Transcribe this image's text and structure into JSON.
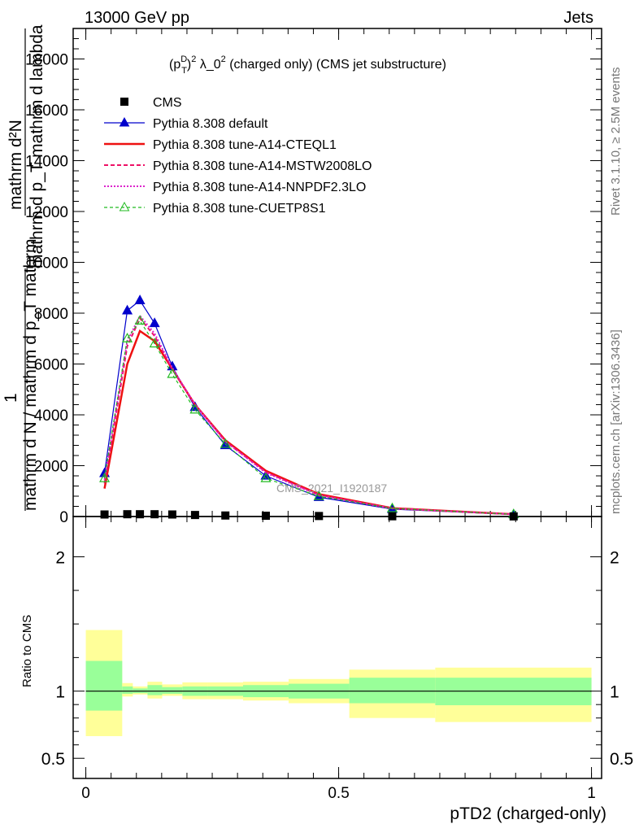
{
  "header": {
    "left": "13000 GeV pp",
    "right": "Jets"
  },
  "side_labels": {
    "rivet": "Rivet 3.1.10, ≥ 2.5M events",
    "mcplots": "mcplots.cern.ch [arXiv:1306.3436]"
  },
  "chart_data": {
    "type": "line",
    "title_parts": {
      "p": "(p",
      "sup_d": "D",
      "sub_t": "T",
      "rest": ")",
      "sup_2": "2",
      "label": " λ_0",
      "sup_2b": "2",
      "tail": " (charged only) (CMS jet substructure)"
    },
    "ylabel_top": {
      "numerator": "mathrm d²N",
      "denominator": "mathrm d p_T mathrm d lambda",
      "one": "1",
      "frac": "mathrm d N / mathrm d p_T mathrm"
    },
    "analysis_tag": "CMS_2021_I1920187",
    "xlabel": "pTD2 (charged-only)",
    "ratio_ylabel": "Ratio to CMS",
    "main_yticks": [
      {
        "v": 2000,
        "label": "2000"
      },
      {
        "v": 4000,
        "label": "4000"
      },
      {
        "v": 6000,
        "label": "6000"
      },
      {
        "v": 8000,
        "label": "8000"
      },
      {
        "v": 10000,
        "label": "10000"
      },
      {
        "v": 12000,
        "label": "12000"
      },
      {
        "v": 14000,
        "label": "14000"
      },
      {
        "v": 16000,
        "label": "16000"
      },
      {
        "v": 18000,
        "label": "18000"
      },
      {
        "v": 0,
        "label": "0"
      }
    ],
    "main_ylim": [
      0,
      19200
    ],
    "xlim": [
      -0.025,
      1.02
    ],
    "xticks": [
      {
        "v": 0,
        "label": "0"
      },
      {
        "v": 0.5,
        "label": "0.5"
      },
      {
        "v": 1,
        "label": "1"
      }
    ],
    "ratio_ylim": [
      0.35,
      2.3
    ],
    "ratio_yticks": [
      {
        "v": 0.5,
        "label": "0.5"
      },
      {
        "v": 1,
        "label": "1"
      },
      {
        "v": 2,
        "label": "2"
      }
    ],
    "x": [
      0.037,
      0.082,
      0.107,
      0.136,
      0.171,
      0.216,
      0.276,
      0.356,
      0.461,
      0.606,
      0.846
    ],
    "bins": [
      0.0,
      0.072,
      0.093,
      0.122,
      0.151,
      0.191,
      0.241,
      0.311,
      0.401,
      0.521,
      0.691,
      1.0
    ],
    "cms_values": [
      80,
      90,
      90,
      90,
      80,
      60,
      40,
      30,
      20,
      10,
      5
    ],
    "series": [
      {
        "name": "CMS",
        "color": "#000000",
        "marker": "square",
        "dash": "",
        "values": [
          80,
          90,
          90,
          90,
          80,
          60,
          40,
          30,
          20,
          10,
          5
        ]
      },
      {
        "name": "Pythia 8.308 default",
        "color": "#0000cc",
        "marker": "triangle",
        "dash": "",
        "values": [
          1700,
          8100,
          8500,
          7600,
          5900,
          4300,
          2800,
          1600,
          760,
          290,
          80
        ]
      },
      {
        "name": "Pythia 8.308 tune-A14-CTEQL1",
        "color": "#ee1111",
        "marker": "",
        "dash": "",
        "width": 2.5,
        "values": [
          1100,
          6000,
          7300,
          6900,
          5800,
          4400,
          3000,
          1800,
          880,
          330,
          90
        ]
      },
      {
        "name": "Pythia 8.308 tune-A14-MSTW2008LO",
        "color": "#ee1166",
        "marker": "",
        "dash": "5,3",
        "width": 2,
        "values": [
          1300,
          6700,
          7800,
          7100,
          5800,
          4400,
          2950,
          1750,
          850,
          320,
          85
        ]
      },
      {
        "name": "Pythia 8.308 tune-A14-NNPDF2.3LO",
        "color": "#dd22cc",
        "marker": "",
        "dash": "2,2",
        "width": 2,
        "values": [
          1450,
          6900,
          7900,
          7200,
          5850,
          4400,
          2950,
          1720,
          830,
          315,
          85
        ]
      },
      {
        "name": "Pythia 8.308 tune-CUETP8S1",
        "color": "#22bb22",
        "marker": "open-triangle",
        "dash": "4,3",
        "width": 1.2,
        "values": [
          1500,
          7000,
          7700,
          6800,
          5600,
          4200,
          2850,
          1500,
          800,
          320,
          85
        ]
      }
    ],
    "ratio_bands": [
      {
        "x0": 0.0,
        "x1": 0.072,
        "g": [
          0.855,
          1.225
        ],
        "y": [
          0.665,
          1.455
        ]
      },
      {
        "x0": 0.072,
        "x1": 0.093,
        "g": [
          0.98,
          1.035
        ],
        "y": [
          0.96,
          1.06
        ]
      },
      {
        "x0": 0.093,
        "x1": 0.122,
        "g": [
          0.985,
          1.02
        ],
        "y": [
          0.975,
          1.035
        ]
      },
      {
        "x0": 0.122,
        "x1": 0.151,
        "g": [
          0.97,
          1.045
        ],
        "y": [
          0.945,
          1.07
        ]
      },
      {
        "x0": 0.151,
        "x1": 0.191,
        "g": [
          0.98,
          1.03
        ],
        "y": [
          0.965,
          1.05
        ]
      },
      {
        "x0": 0.191,
        "x1": 0.241,
        "g": [
          0.965,
          1.035
        ],
        "y": [
          0.94,
          1.065
        ]
      },
      {
        "x0": 0.241,
        "x1": 0.311,
        "g": [
          0.965,
          1.035
        ],
        "y": [
          0.94,
          1.065
        ]
      },
      {
        "x0": 0.311,
        "x1": 0.401,
        "g": [
          0.955,
          1.045
        ],
        "y": [
          0.93,
          1.07
        ]
      },
      {
        "x0": 0.401,
        "x1": 0.521,
        "g": [
          0.945,
          1.055
        ],
        "y": [
          0.91,
          1.09
        ]
      },
      {
        "x0": 0.521,
        "x1": 0.691,
        "g": [
          0.91,
          1.1
        ],
        "y": [
          0.8,
          1.16
        ]
      },
      {
        "x0": 0.691,
        "x1": 1.0,
        "g": [
          0.895,
          1.1
        ],
        "y": [
          0.77,
          1.175
        ]
      }
    ],
    "colors": {
      "band_inner": "#99ff99",
      "band_outer": "#ffff99"
    }
  }
}
